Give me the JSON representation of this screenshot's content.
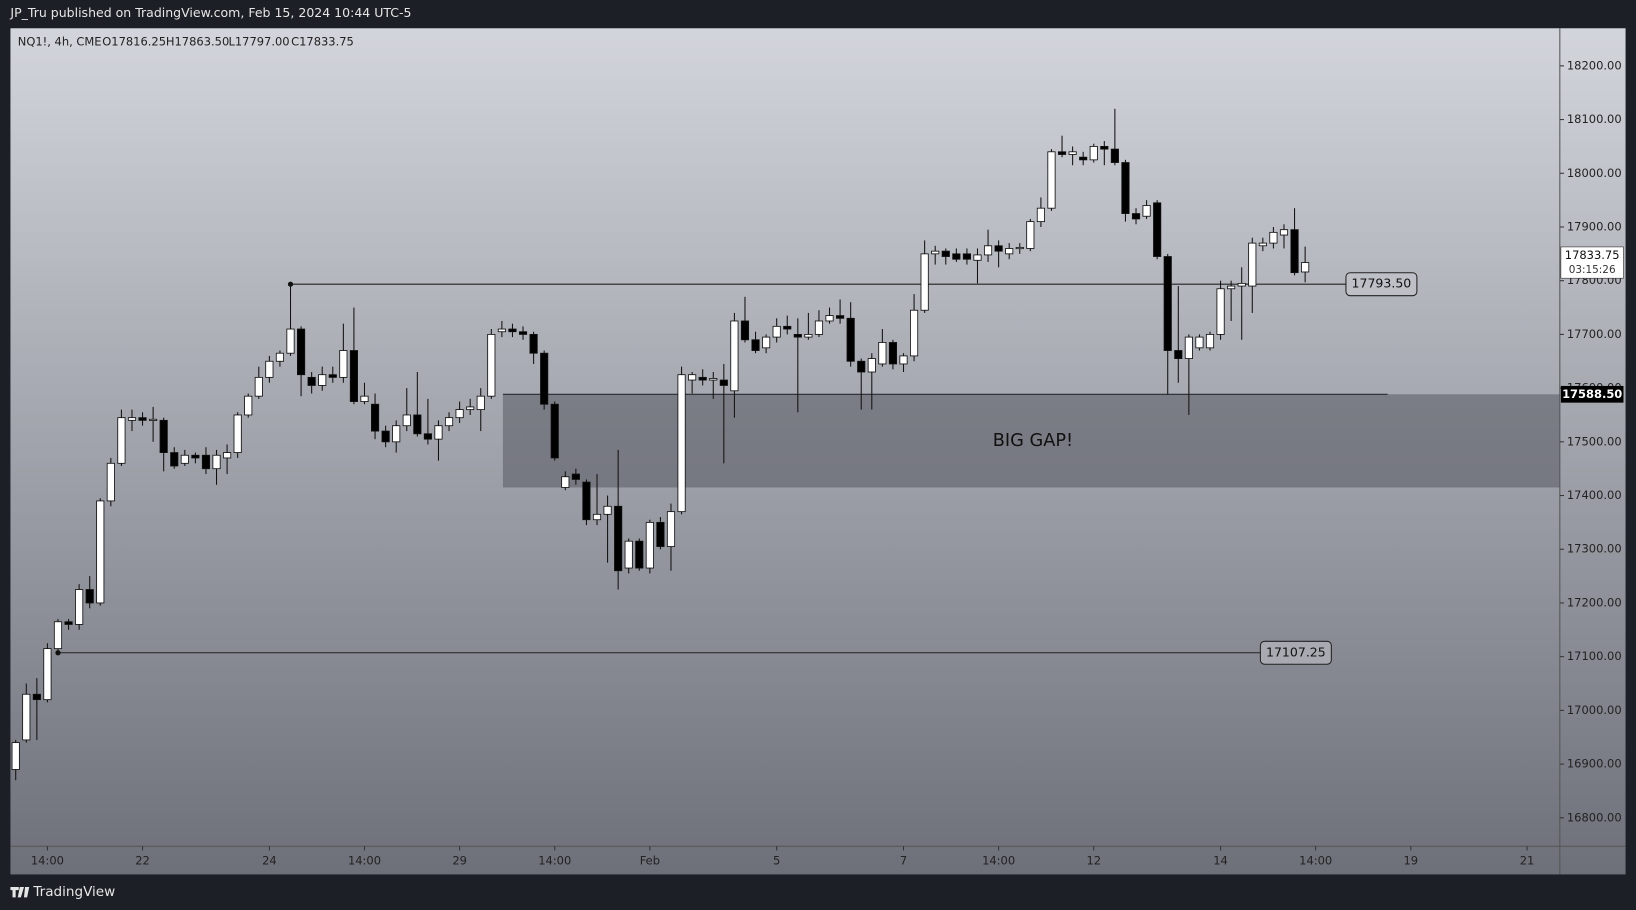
{
  "chart_data": {
    "type": "candlestick",
    "header": "JP_Tru published on TradingView.com, Feb 15, 2024 10:44 UTC-5",
    "symbol": "NQ1!, 4h, CME",
    "ohlc_labels": [
      "O17816.25",
      "H17863.50",
      "L17797.00",
      "C17833.75"
    ],
    "footer": "TradingView",
    "open": [
      16890,
      16945,
      17030,
      17020,
      17115,
      17165,
      17160,
      17225,
      17200,
      17390,
      17460,
      17540,
      17545,
      17540,
      17540,
      17480,
      17460,
      17475,
      17475,
      17450,
      17470,
      17480,
      17550,
      17585,
      17620,
      17650,
      17665,
      17710,
      17620,
      17605,
      17625,
      17620,
      17670,
      17575,
      17570,
      17520,
      17500,
      17530,
      17550,
      17515,
      17505,
      17530,
      17545,
      17560,
      17560,
      17585,
      17705,
      17710,
      17705,
      17700,
      17665,
      17570,
      17415,
      17440,
      17425,
      17355,
      17365,
      17380,
      17265,
      17315,
      17265,
      17350,
      17305,
      17370,
      17615,
      17620,
      17615,
      17615,
      17595,
      17725,
      17690,
      17675,
      17695,
      17715,
      17700,
      17695,
      17700,
      17725,
      17735,
      17730,
      17650,
      17630,
      17645,
      17685,
      17645,
      17660,
      17745,
      17850,
      17855,
      17850,
      17850,
      17838,
      17848,
      17865,
      17850,
      17860,
      17860,
      17910,
      17935,
      18040,
      18035,
      18030,
      18025,
      18050,
      18045,
      18020,
      17925,
      17920,
      17945,
      17845,
      17670,
      17655,
      17675,
      17675,
      17700,
      17785,
      17790,
      17790,
      17865,
      17870,
      17885,
      17895,
      17816.25
    ],
    "high": [
      16945,
      17050,
      17060,
      17125,
      17170,
      17170,
      17235,
      17250,
      17395,
      17470,
      17560,
      17560,
      17555,
      17565,
      17545,
      17490,
      17485,
      17480,
      17490,
      17485,
      17495,
      17555,
      17590,
      17640,
      17660,
      17670,
      17793.5,
      17715,
      17630,
      17640,
      17640,
      17720,
      17750,
      17610,
      17590,
      17530,
      17540,
      17600,
      17630,
      17580,
      17540,
      17555,
      17575,
      17580,
      17600,
      17710,
      17725,
      17720,
      17715,
      17705,
      17670,
      17575,
      17445,
      17450,
      17430,
      17440,
      17400,
      17485,
      17320,
      17320,
      17355,
      17360,
      17385,
      17640,
      17630,
      17635,
      17630,
      17645,
      17740,
      17770,
      17705,
      17700,
      17730,
      17735,
      17730,
      17740,
      17745,
      17750,
      17765,
      17760,
      17655,
      17665,
      17710,
      17690,
      17665,
      17775,
      17875,
      17865,
      17860,
      17860,
      17860,
      17860,
      17895,
      17875,
      17870,
      17870,
      17915,
      17955,
      18045,
      18070,
      18050,
      18040,
      18055,
      18060,
      18120,
      18025,
      17935,
      17950,
      17950,
      17850,
      17790,
      17700,
      17700,
      17705,
      17800,
      17800,
      17825,
      17880,
      17880,
      17900,
      17905,
      17935,
      17863.5
    ],
    "low": [
      16870,
      16940,
      16945,
      17015,
      17107.25,
      17150,
      17150,
      17190,
      17195,
      17380,
      17455,
      17520,
      17530,
      17500,
      17445,
      17450,
      17455,
      17460,
      17440,
      17420,
      17440,
      17470,
      17545,
      17580,
      17610,
      17640,
      17660,
      17585,
      17590,
      17595,
      17610,
      17610,
      17570,
      17570,
      17505,
      17490,
      17480,
      17520,
      17510,
      17495,
      17465,
      17520,
      17535,
      17550,
      17520,
      17580,
      17695,
      17695,
      17690,
      17645,
      17560,
      17465,
      17410,
      17420,
      17345,
      17345,
      17275,
      17225,
      17255,
      17260,
      17255,
      17300,
      17260,
      17365,
      17590,
      17605,
      17580,
      17460,
      17545,
      17685,
      17665,
      17665,
      17685,
      17700,
      17555,
      17690,
      17695,
      17720,
      17720,
      17640,
      17560,
      17560,
      17640,
      17635,
      17630,
      17650,
      17740,
      17830,
      17830,
      17835,
      17830,
      17795,
      17835,
      17825,
      17840,
      17850,
      17855,
      17900,
      17930,
      18030,
      18015,
      18015,
      18020,
      18015,
      18015,
      17910,
      17905,
      17915,
      17840,
      17588.5,
      17610,
      17550,
      17670,
      17670,
      17690,
      17725,
      17690,
      17740,
      17855,
      17860,
      17860,
      17810,
      17797
    ],
    "close": [
      16940,
      17030,
      17020,
      17115,
      17165,
      17160,
      17225,
      17200,
      17390,
      17460,
      17545,
      17545,
      17540,
      17542,
      17480,
      17455,
      17475,
      17470,
      17450,
      17475,
      17480,
      17550,
      17585,
      17620,
      17650,
      17665,
      17710,
      17625,
      17605,
      17625,
      17620,
      17670,
      17575,
      17585,
      17520,
      17500,
      17530,
      17550,
      17515,
      17505,
      17530,
      17545,
      17560,
      17565,
      17585,
      17700,
      17710,
      17705,
      17700,
      17665,
      17570,
      17470,
      17435,
      17430,
      17355,
      17365,
      17380,
      17260,
      17315,
      17265,
      17350,
      17305,
      17370,
      17625,
      17625,
      17615,
      17618,
      17605,
      17725,
      17690,
      17670,
      17695,
      17715,
      17710,
      17695,
      17700,
      17725,
      17735,
      17730,
      17650,
      17630,
      17655,
      17685,
      17645,
      17660,
      17745,
      17850,
      17855,
      17845,
      17840,
      17840,
      17848,
      17865,
      17855,
      17860,
      17862,
      17910,
      17935,
      18040,
      18035,
      18040,
      18025,
      18050,
      18045,
      18020,
      17925,
      17915,
      17940,
      17845,
      17670,
      17655,
      17695,
      17695,
      17700,
      17785,
      17790,
      17795,
      17870,
      17870,
      17890,
      17895,
      17815,
      17833.75
    ],
    "ylim": [
      16747,
      18270
    ],
    "yticks": [
      {
        "value": 16800,
        "label": "16800.00"
      },
      {
        "value": 16900,
        "label": "16900.00"
      },
      {
        "value": 17000,
        "label": "17000.00"
      },
      {
        "value": 17100,
        "label": "17100.00"
      },
      {
        "value": 17200,
        "label": "17200.00"
      },
      {
        "value": 17300,
        "label": "17300.00"
      },
      {
        "value": 17400,
        "label": "17400.00"
      },
      {
        "value": 17500,
        "label": "17500.00"
      },
      {
        "value": 17600,
        "label": "17600.00"
      },
      {
        "value": 17700,
        "label": "17700.00"
      },
      {
        "value": 17800,
        "label": "17800.00"
      },
      {
        "value": 17900,
        "label": "17900.00"
      },
      {
        "value": 18000,
        "label": "18000.00"
      },
      {
        "value": 18100,
        "label": "18100.00"
      },
      {
        "value": 18200,
        "label": "18200.00"
      }
    ],
    "xlim": [
      -0.5,
      146.1
    ],
    "xticks": [
      {
        "value": 3,
        "label": "14:00"
      },
      {
        "value": 12,
        "label": "22"
      },
      {
        "value": 24,
        "label": "24"
      },
      {
        "value": 33,
        "label": "14:00"
      },
      {
        "value": 42,
        "label": "29"
      },
      {
        "value": 51,
        "label": "14:00"
      },
      {
        "value": 60,
        "label": "Feb"
      },
      {
        "value": 72,
        "label": "5"
      },
      {
        "value": 84,
        "label": "7"
      },
      {
        "value": 93,
        "label": "14:00"
      },
      {
        "value": 102,
        "label": "12"
      },
      {
        "value": 114,
        "label": "14"
      },
      {
        "value": 123,
        "label": "14:00"
      },
      {
        "value": 132,
        "label": "19"
      },
      {
        "value": 143,
        "label": "21"
      }
    ],
    "levels": [
      {
        "value": 17793.5,
        "label": "17793.50"
      },
      {
        "value": 17107.25,
        "label": "17107.25"
      }
    ],
    "gap": {
      "top": 17588.5,
      "bottom": 17415,
      "top_label": "17588.50",
      "text": "BIG GAP!"
    },
    "last_price_label": "17833.75",
    "countdown": "03:15:26"
  }
}
